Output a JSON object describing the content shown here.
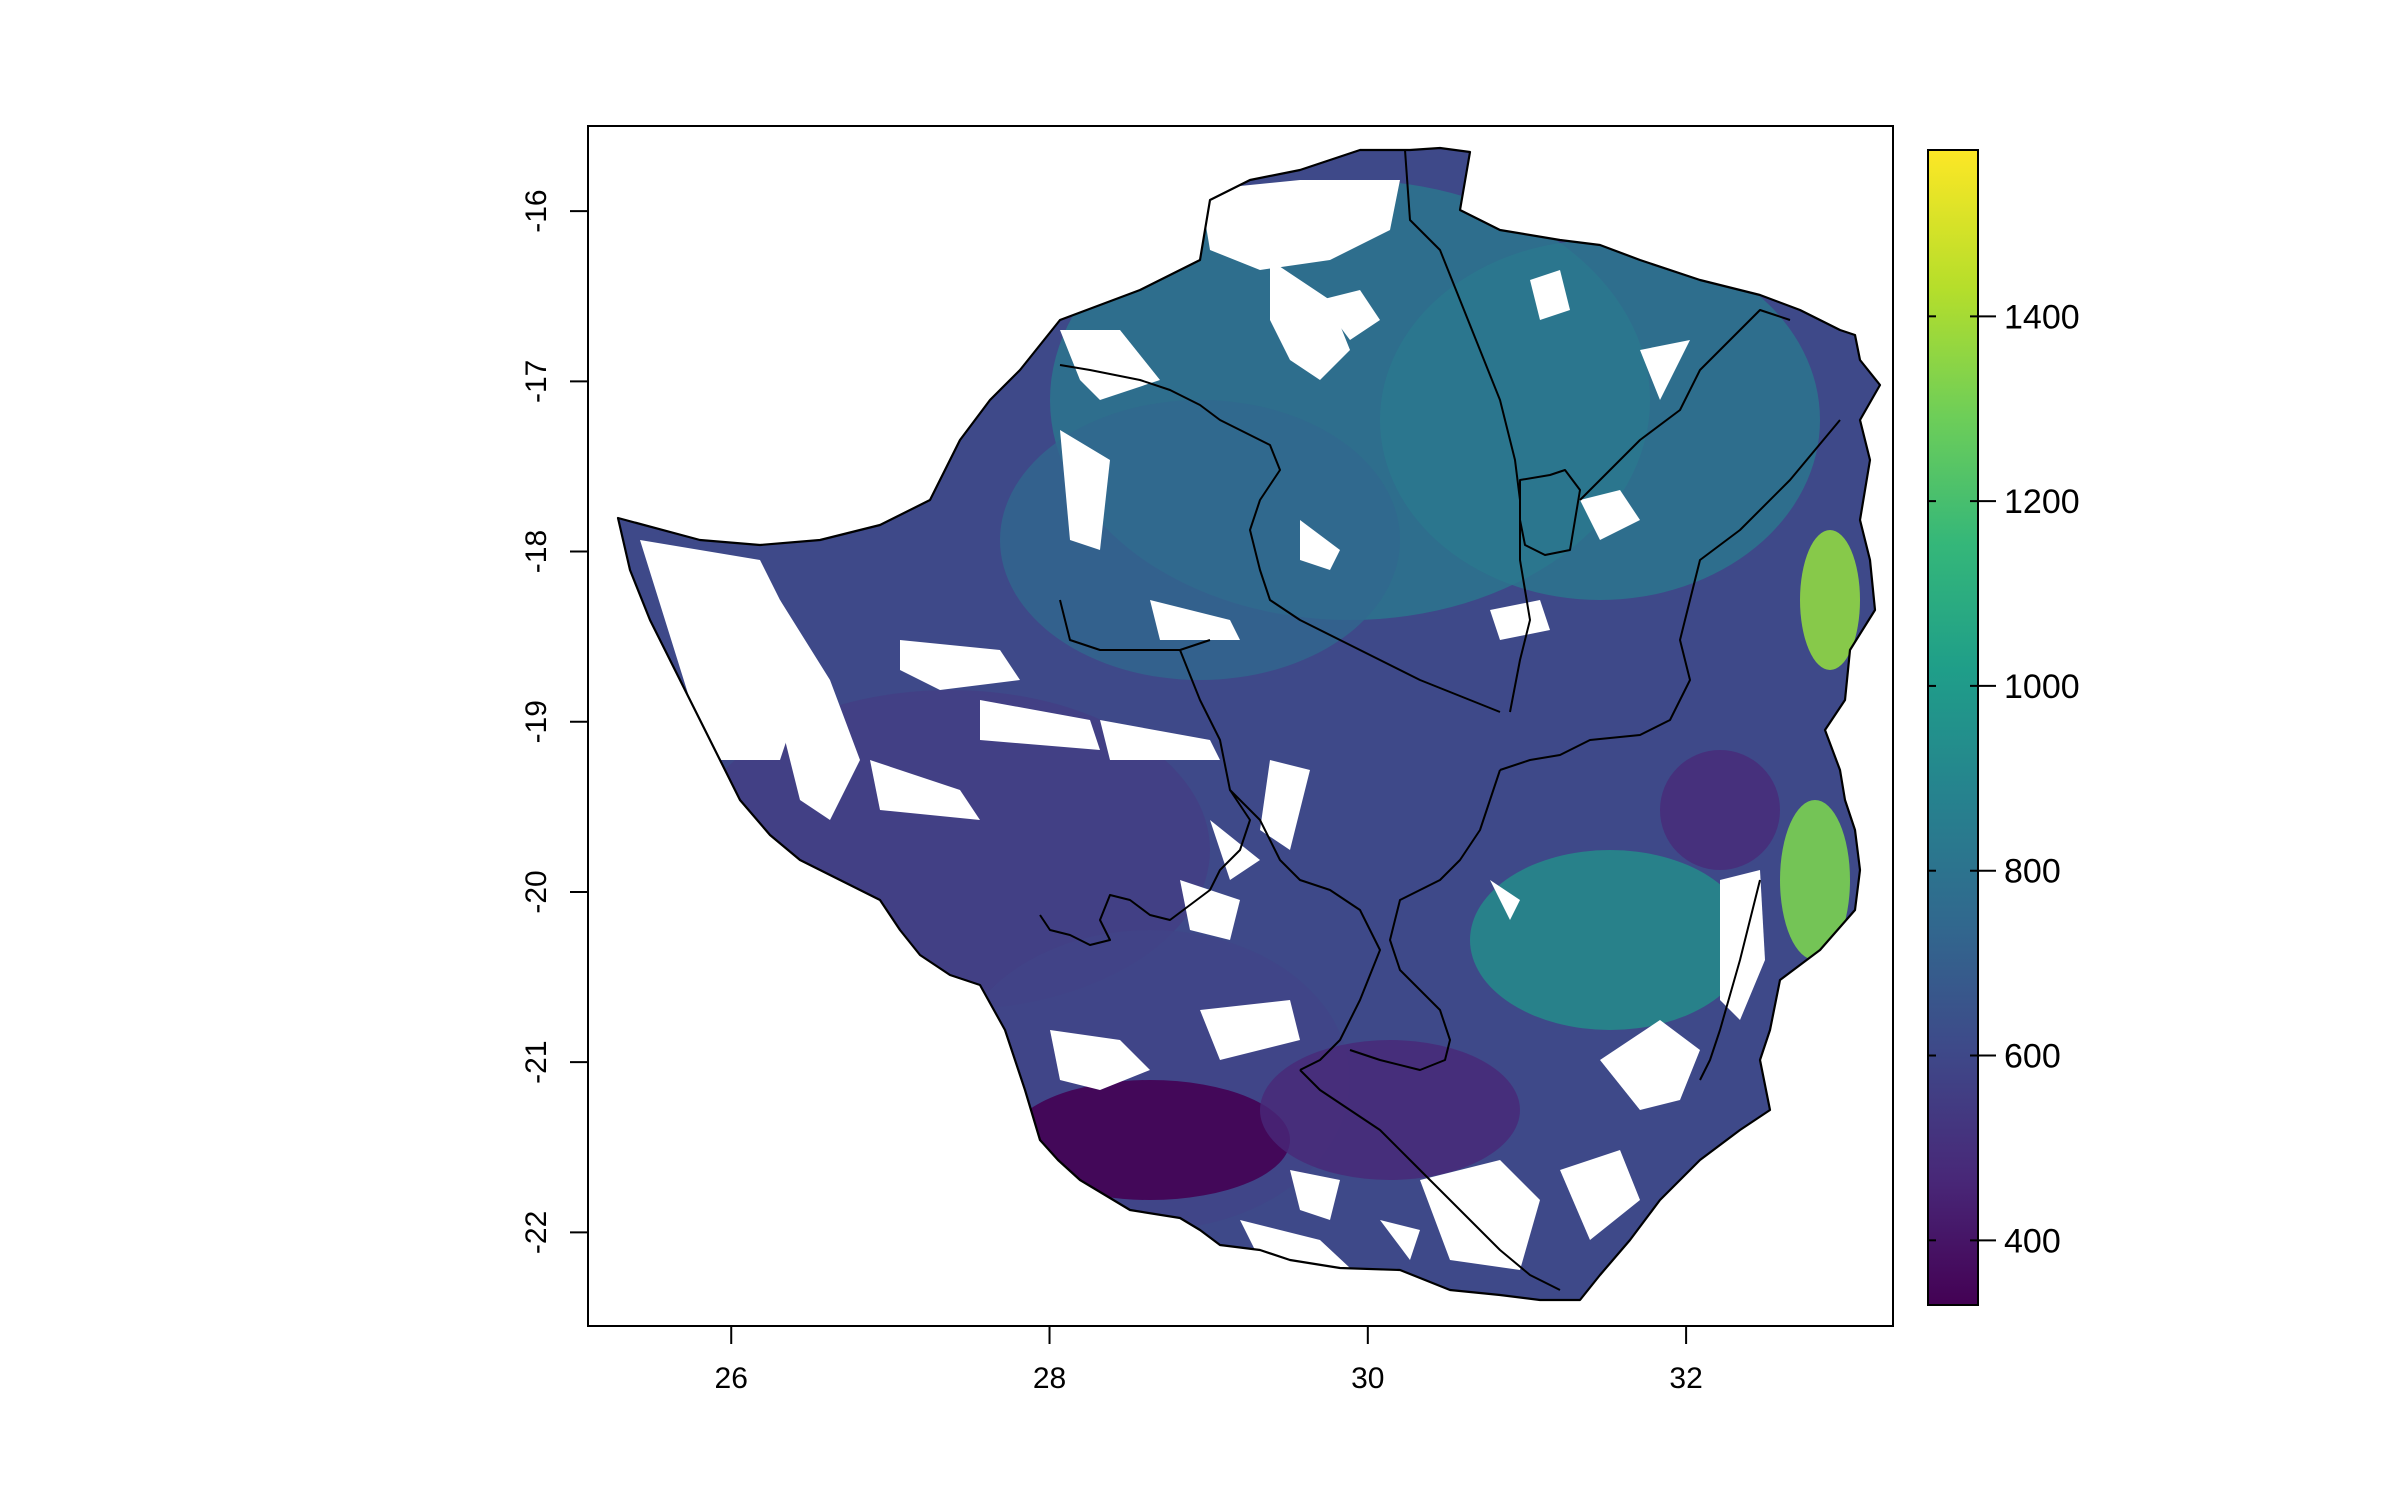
{
  "map": {
    "x_axis": {
      "ticks": [
        26,
        28,
        30,
        32
      ],
      "range": [
        25.1,
        33.3
      ]
    },
    "y_axis": {
      "ticks": [
        -16,
        -17,
        -18,
        -19,
        -20,
        -21,
        -22
      ],
      "range": [
        -22.55,
        -15.5
      ]
    },
    "frame": "box",
    "no_data_color": "#ffffff",
    "boundary_color": "#000000",
    "raster_description_regions": [
      {
        "name": "north-west",
        "level": 720
      },
      {
        "name": "north",
        "level": 880
      },
      {
        "name": "north-east",
        "level": 780
      },
      {
        "name": "center",
        "level": 700
      },
      {
        "name": "west",
        "level": 580
      },
      {
        "name": "south-west",
        "level": 470
      },
      {
        "name": "south",
        "level": 420
      },
      {
        "name": "south-east",
        "level": 620
      },
      {
        "name": "east-highlands",
        "level": 1450
      },
      {
        "name": "east-center",
        "level": 480
      }
    ]
  },
  "legend": {
    "type": "continuous-colorbar",
    "palette": "viridis",
    "colors": [
      "#440154",
      "#482878",
      "#3e4989",
      "#31688e",
      "#26828e",
      "#1f9e89",
      "#35b779",
      "#6ece58",
      "#b5de2b",
      "#fde725"
    ],
    "min": 330,
    "max": 1580,
    "ticks": [
      400,
      600,
      800,
      1000,
      1200,
      1400
    ]
  }
}
